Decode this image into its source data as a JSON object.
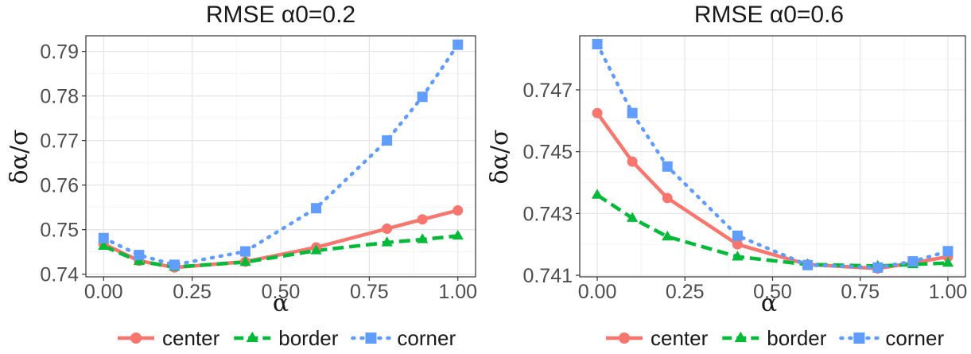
{
  "chart_data": [
    {
      "type": "line",
      "title": "RMSE α0=0.2",
      "xlabel": "α",
      "ylabel": "δα/σ",
      "xlim": [
        -0.05,
        1.05
      ],
      "ylim": [
        0.7394,
        0.7935
      ],
      "xticks": [
        "0.00",
        "0.25",
        "0.50",
        "0.75",
        "1.00"
      ],
      "xtick_values": [
        0,
        0.25,
        0.5,
        0.75,
        1.0
      ],
      "yticks": [
        "0.74",
        "0.75",
        "0.76",
        "0.77",
        "0.78",
        "0.79"
      ],
      "ytick_values": [
        0.74,
        0.75,
        0.76,
        0.77,
        0.78,
        0.79
      ],
      "grid": true,
      "series": [
        {
          "name": "center",
          "color": "#F8766D",
          "dash": "solid",
          "marker": "circle",
          "x": [
            0,
            0.1,
            0.2,
            0.4,
            0.6,
            0.8,
            0.9,
            1.0
          ],
          "y": [
            0.7468,
            0.743,
            0.7415,
            0.7428,
            0.746,
            0.7502,
            0.7523,
            0.7543
          ]
        },
        {
          "name": "border",
          "color": "#00BA38",
          "dash": "dashed",
          "marker": "triangle",
          "x": [
            0,
            0.1,
            0.2,
            0.4,
            0.6,
            0.8,
            0.9,
            1.0
          ],
          "y": [
            0.7463,
            0.7429,
            0.7416,
            0.7427,
            0.7453,
            0.7471,
            0.7478,
            0.7486
          ]
        },
        {
          "name": "corner",
          "color": "#619CFF",
          "dash": "dotted",
          "marker": "square",
          "x": [
            0,
            0.1,
            0.2,
            0.4,
            0.6,
            0.8,
            0.9,
            1.0
          ],
          "y": [
            0.7481,
            0.7443,
            0.7421,
            0.7451,
            0.7548,
            0.77,
            0.7798,
            0.7915
          ]
        }
      ]
    },
    {
      "type": "line",
      "title": "RMSE α0=0.6",
      "xlabel": "α",
      "ylabel": "δα/σ",
      "xlim": [
        -0.05,
        1.05
      ],
      "ylim": [
        0.74095,
        0.74875
      ],
      "xticks": [
        "0.00",
        "0.25",
        "0.50",
        "0.75",
        "1.00"
      ],
      "xtick_values": [
        0,
        0.25,
        0.5,
        0.75,
        1.0
      ],
      "yticks": [
        "0.741",
        "0.743",
        "0.745",
        "0.747"
      ],
      "ytick_values": [
        0.741,
        0.743,
        0.745,
        0.747
      ],
      "grid": true,
      "series": [
        {
          "name": "center",
          "color": "#F8766D",
          "dash": "solid",
          "marker": "circle",
          "x": [
            0,
            0.1,
            0.2,
            0.4,
            0.6,
            0.8,
            0.9,
            1.0
          ],
          "y": [
            0.74625,
            0.74468,
            0.7435,
            0.742,
            0.74135,
            0.74122,
            0.7414,
            0.7416
          ]
        },
        {
          "name": "border",
          "color": "#00BA38",
          "dash": "dashed",
          "marker": "triangle",
          "x": [
            0,
            0.1,
            0.2,
            0.4,
            0.6,
            0.8,
            0.9,
            1.0
          ],
          "y": [
            0.7436,
            0.74285,
            0.74225,
            0.7416,
            0.74135,
            0.7413,
            0.74135,
            0.7414
          ]
        },
        {
          "name": "corner",
          "color": "#619CFF",
          "dash": "dotted",
          "marker": "square",
          "x": [
            0,
            0.1,
            0.2,
            0.4,
            0.6,
            0.8,
            0.9,
            1.0
          ],
          "y": [
            0.74848,
            0.74625,
            0.74452,
            0.74228,
            0.74133,
            0.74125,
            0.74145,
            0.74178
          ]
        }
      ]
    }
  ],
  "legend": {
    "position": "bottom",
    "items": [
      {
        "label": "center",
        "color": "#F8766D",
        "dash": "solid",
        "marker": "circle"
      },
      {
        "label": "border",
        "color": "#00BA38",
        "dash": "dashed",
        "marker": "triangle"
      },
      {
        "label": "corner",
        "color": "#619CFF",
        "dash": "dotted",
        "marker": "square"
      }
    ]
  }
}
